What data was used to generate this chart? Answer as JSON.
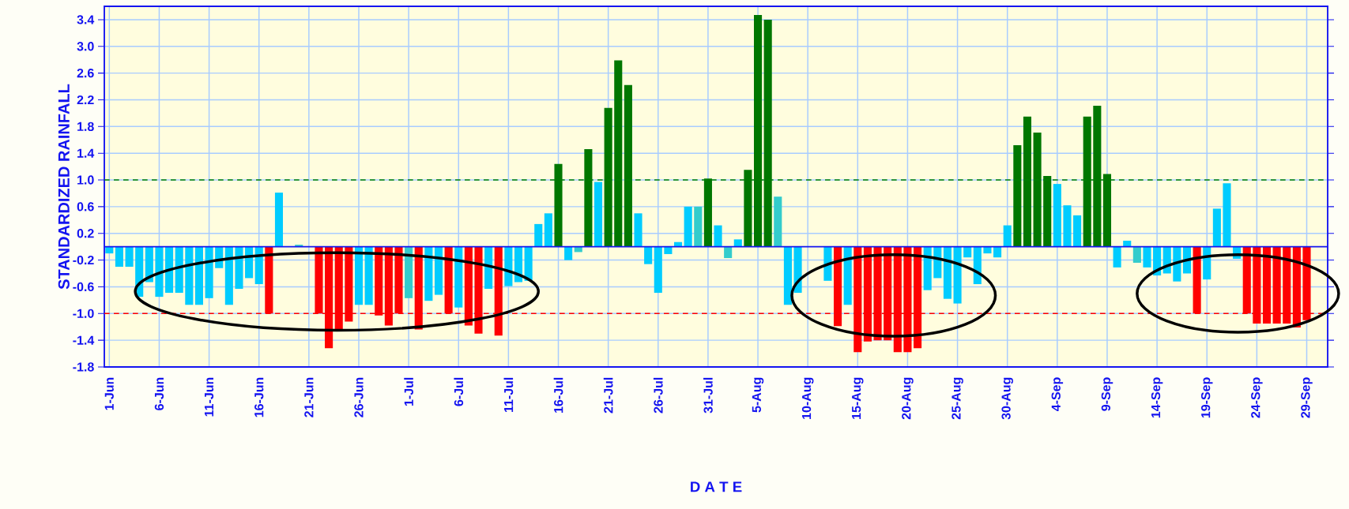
{
  "chart_data": {
    "type": "bar",
    "xlabel": "D A T E",
    "ylabel": "STANDARDIZED RAINFALL",
    "categories": [
      "1-Jun",
      null,
      null,
      null,
      null,
      "6-Jun",
      null,
      null,
      null,
      null,
      "11-Jun",
      null,
      null,
      null,
      null,
      "16-Jun",
      null,
      null,
      null,
      null,
      "21-Jun",
      null,
      null,
      null,
      null,
      "26-Jun",
      null,
      null,
      null,
      null,
      "1-Jul",
      null,
      null,
      null,
      null,
      "6-Jul",
      null,
      null,
      null,
      null,
      "11-Jul",
      null,
      null,
      null,
      null,
      "16-Jul",
      null,
      null,
      null,
      null,
      "21-Jul",
      null,
      null,
      null,
      null,
      "26-Jul",
      null,
      null,
      null,
      null,
      "31-Jul",
      null,
      null,
      null,
      null,
      "5-Aug",
      null,
      null,
      null,
      null,
      "10-Aug",
      null,
      null,
      null,
      null,
      "15-Aug",
      null,
      null,
      null,
      null,
      "20-Aug",
      null,
      null,
      null,
      null,
      "25-Aug",
      null,
      null,
      null,
      null,
      "30-Aug",
      null,
      null,
      null,
      null,
      "4-Sep",
      null,
      null,
      null,
      null,
      "9-Sep",
      null,
      null,
      null,
      null,
      "14-Sep",
      null,
      null,
      null,
      null,
      "19-Sep",
      null,
      null,
      null,
      null,
      "24-Sep",
      null,
      null,
      null,
      null,
      "29-Sep",
      null
    ],
    "values": [
      -0.1,
      -0.3,
      -0.3,
      -0.75,
      -0.53,
      -0.75,
      -0.69,
      -0.69,
      -0.87,
      -0.87,
      -0.77,
      -0.32,
      -0.87,
      -0.63,
      -0.47,
      -0.56,
      -1.0,
      0.81,
      0,
      0.03,
      0,
      -1.0,
      -1.52,
      -1.26,
      -1.12,
      -0.87,
      -0.87,
      -1.03,
      -1.18,
      -1.0,
      -0.77,
      -1.24,
      -0.81,
      -0.72,
      -1.0,
      -0.91,
      -1.18,
      -1.3,
      -0.63,
      -1.33,
      -0.59,
      -0.53,
      -0.51,
      0.34,
      0.5,
      1.24,
      -0.2,
      -0.08,
      1.46,
      0.97,
      2.08,
      2.79,
      2.42,
      0.5,
      -0.26,
      -0.69,
      -0.11,
      0.07,
      0.6,
      0.6,
      1.02,
      0.32,
      -0.17,
      0.11,
      1.15,
      3.47,
      3.4,
      0.75,
      -0.87,
      -0.69,
      0,
      0,
      -0.51,
      -1.19,
      -0.87,
      -1.58,
      -1.42,
      -1.4,
      -1.4,
      -1.58,
      -1.58,
      -1.52,
      -0.65,
      -0.47,
      -0.78,
      -0.85,
      -0.16,
      -0.56,
      -0.1,
      -0.16,
      0.32,
      1.52,
      1.95,
      1.71,
      1.06,
      0.94,
      0.62,
      0.47,
      1.95,
      2.11,
      1.09,
      -0.31,
      0.09,
      -0.24,
      -0.31,
      -0.43,
      -0.4,
      -0.52,
      -0.4,
      -1.0,
      -0.49,
      0.57,
      0.95,
      -0.18,
      -1.0,
      -1.15,
      -1.15,
      -1.15,
      -1.15,
      -1.21,
      -1.1,
      0
    ],
    "colors": [
      "#00ccff",
      "#00ccff",
      "#00ccff",
      "#00ccff",
      "#00ccff",
      "#00ccff",
      "#00ccff",
      "#00ccff",
      "#00ccff",
      "#00ccff",
      "#00ccff",
      "#00ccff",
      "#00ccff",
      "#00ccff",
      "#00ccff",
      "#00ccff",
      "#ff0000",
      "#00ccff",
      "#00ccff",
      "#33cccc",
      "#00ccff",
      "#ff0000",
      "#ff0000",
      "#ff0000",
      "#ff0000",
      "#00ccff",
      "#00ccff",
      "#ff0000",
      "#ff0000",
      "#ff0000",
      "#33cccc",
      "#ff0000",
      "#00ccff",
      "#00ccff",
      "#ff0000",
      "#00ccff",
      "#ff0000",
      "#ff0000",
      "#00ccff",
      "#ff0000",
      "#00ccff",
      "#00ccff",
      "#00ccff",
      "#00ccff",
      "#00ccff",
      "#007700",
      "#00ccff",
      "#33cccc",
      "#007700",
      "#00ccff",
      "#007700",
      "#007700",
      "#007700",
      "#00ccff",
      "#00ccff",
      "#00ccff",
      "#00ccff",
      "#00ccff",
      "#00ccff",
      "#33cccc",
      "#007700",
      "#00ccff",
      "#33cccc",
      "#00ccff",
      "#007700",
      "#007700",
      "#007700",
      "#33cccc",
      "#00ccff",
      "#00ccff",
      "#00ccff",
      "#00ccff",
      "#00ccff",
      "#ff0000",
      "#00ccff",
      "#ff0000",
      "#ff0000",
      "#ff0000",
      "#ff0000",
      "#ff0000",
      "#ff0000",
      "#ff0000",
      "#00ccff",
      "#00ccff",
      "#00ccff",
      "#00ccff",
      "#00ccff",
      "#00ccff",
      "#00ccff",
      "#00ccff",
      "#00ccff",
      "#007700",
      "#007700",
      "#007700",
      "#007700",
      "#00ccff",
      "#00ccff",
      "#00ccff",
      "#007700",
      "#007700",
      "#007700",
      "#00ccff",
      "#00ccff",
      "#33cccc",
      "#00ccff",
      "#00ccff",
      "#00ccff",
      "#00ccff",
      "#00ccff",
      "#ff0000",
      "#00ccff",
      "#00ccff",
      "#00ccff",
      "#00ccff",
      "#ff0000",
      "#ff0000",
      "#ff0000",
      "#ff0000",
      "#ff0000",
      "#ff0000",
      "#ff0000",
      "#00ccff"
    ],
    "ylim": [
      -1.8,
      3.6
    ],
    "yticks": [
      -1.8,
      -1.4,
      {
        "value": -1,
        "label": "-1.0"
      },
      -0.6,
      -0.2,
      0.2,
      0.6,
      {
        "value": 1,
        "label": "1.0"
      },
      1.4,
      1.8,
      2.2,
      2.6,
      {
        "value": 3,
        "label": "3.0"
      },
      3.4
    ],
    "grid": true,
    "ref_lines": [
      {
        "axis": "y",
        "value": 0,
        "color": "#1414f0",
        "line_style": "solid"
      },
      {
        "axis": "y",
        "value": 1,
        "color": "#008000",
        "line_style": "dashed"
      },
      {
        "axis": "y",
        "value": -1,
        "color": "#ff0000",
        "line_style": "dashed"
      }
    ]
  }
}
